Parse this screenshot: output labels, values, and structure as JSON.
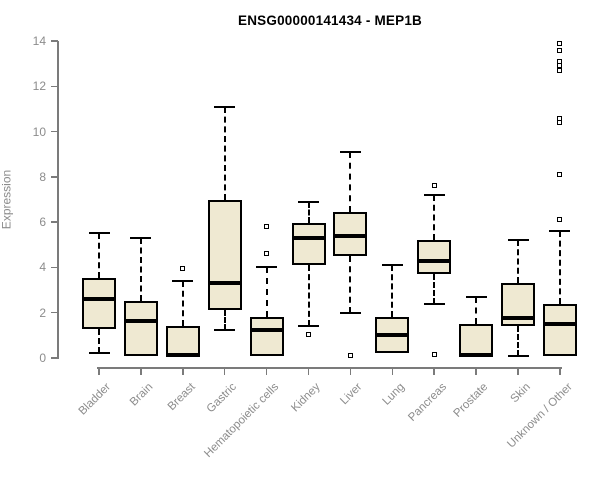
{
  "chart_data": {
    "type": "boxplot",
    "title": "ENSG00000141434 - MEP1B",
    "ylabel": "Expression",
    "xlabel": "",
    "ylim": [
      0,
      14
    ],
    "yticks": [
      0,
      2,
      4,
      6,
      8,
      10,
      12,
      14
    ],
    "grid": false,
    "legend": "none",
    "categories": [
      "Bladder",
      "Brain",
      "Breast",
      "Gastric",
      "Hematopoietic cells",
      "Kidney",
      "Liver",
      "Lung",
      "Pancreas",
      "Prostate",
      "Skin",
      "Unknown / Other"
    ],
    "series": [
      {
        "category": "Bladder",
        "whisker_low": 0.2,
        "q1": 1.3,
        "median": 2.6,
        "q3": 3.55,
        "whisker_high": 5.5,
        "outliers": []
      },
      {
        "category": "Brain",
        "whisker_low": 0.1,
        "q1": 0.1,
        "median": 1.65,
        "q3": 2.5,
        "whisker_high": 5.3,
        "outliers": []
      },
      {
        "category": "Breast",
        "whisker_low": 0.05,
        "q1": 0.05,
        "median": 0.15,
        "q3": 1.4,
        "whisker_high": 3.4,
        "outliers": [
          3.95
        ]
      },
      {
        "category": "Gastric",
        "whisker_low": 1.25,
        "q1": 2.1,
        "median": 3.3,
        "q3": 7.0,
        "whisker_high": 11.1,
        "outliers": []
      },
      {
        "category": "Hematopoietic cells",
        "whisker_low": 0.1,
        "q1": 0.1,
        "median": 1.25,
        "q3": 1.8,
        "whisker_high": 4.0,
        "outliers": [
          4.6,
          5.8
        ]
      },
      {
        "category": "Kidney",
        "whisker_low": 1.4,
        "q1": 4.1,
        "median": 5.3,
        "q3": 5.95,
        "whisker_high": 6.9,
        "outliers": [
          1.05
        ]
      },
      {
        "category": "Liver",
        "whisker_low": 2.0,
        "q1": 4.5,
        "median": 5.4,
        "q3": 6.45,
        "whisker_high": 9.1,
        "outliers": [
          0.1
        ]
      },
      {
        "category": "Lung",
        "whisker_low": 0.2,
        "q1": 0.2,
        "median": 1.0,
        "q3": 1.8,
        "whisker_high": 4.1,
        "outliers": []
      },
      {
        "category": "Pancreas",
        "whisker_low": 2.4,
        "q1": 3.7,
        "median": 4.3,
        "q3": 5.2,
        "whisker_high": 7.2,
        "outliers": [
          7.6,
          0.15
        ]
      },
      {
        "category": "Prostate",
        "whisker_low": 0.05,
        "q1": 0.05,
        "median": 0.15,
        "q3": 1.5,
        "whisker_high": 2.7,
        "outliers": []
      },
      {
        "category": "Skin",
        "whisker_low": 0.1,
        "q1": 1.4,
        "median": 1.75,
        "q3": 3.3,
        "whisker_high": 5.2,
        "outliers": []
      },
      {
        "category": "Unknown / Other",
        "whisker_low": 0.1,
        "q1": 0.1,
        "median": 1.5,
        "q3": 2.4,
        "whisker_high": 5.6,
        "outliers": [
          6.1,
          8.1,
          10.4,
          10.6,
          12.7,
          12.9,
          13.1,
          13.6,
          13.9
        ]
      }
    ],
    "colors": {
      "box_fill": "#EFE9D2",
      "box_border": "#000000",
      "median": "#000000",
      "axis": "#7b7b7b",
      "tick_label": "#8c8c8c",
      "title": "#000000"
    }
  }
}
